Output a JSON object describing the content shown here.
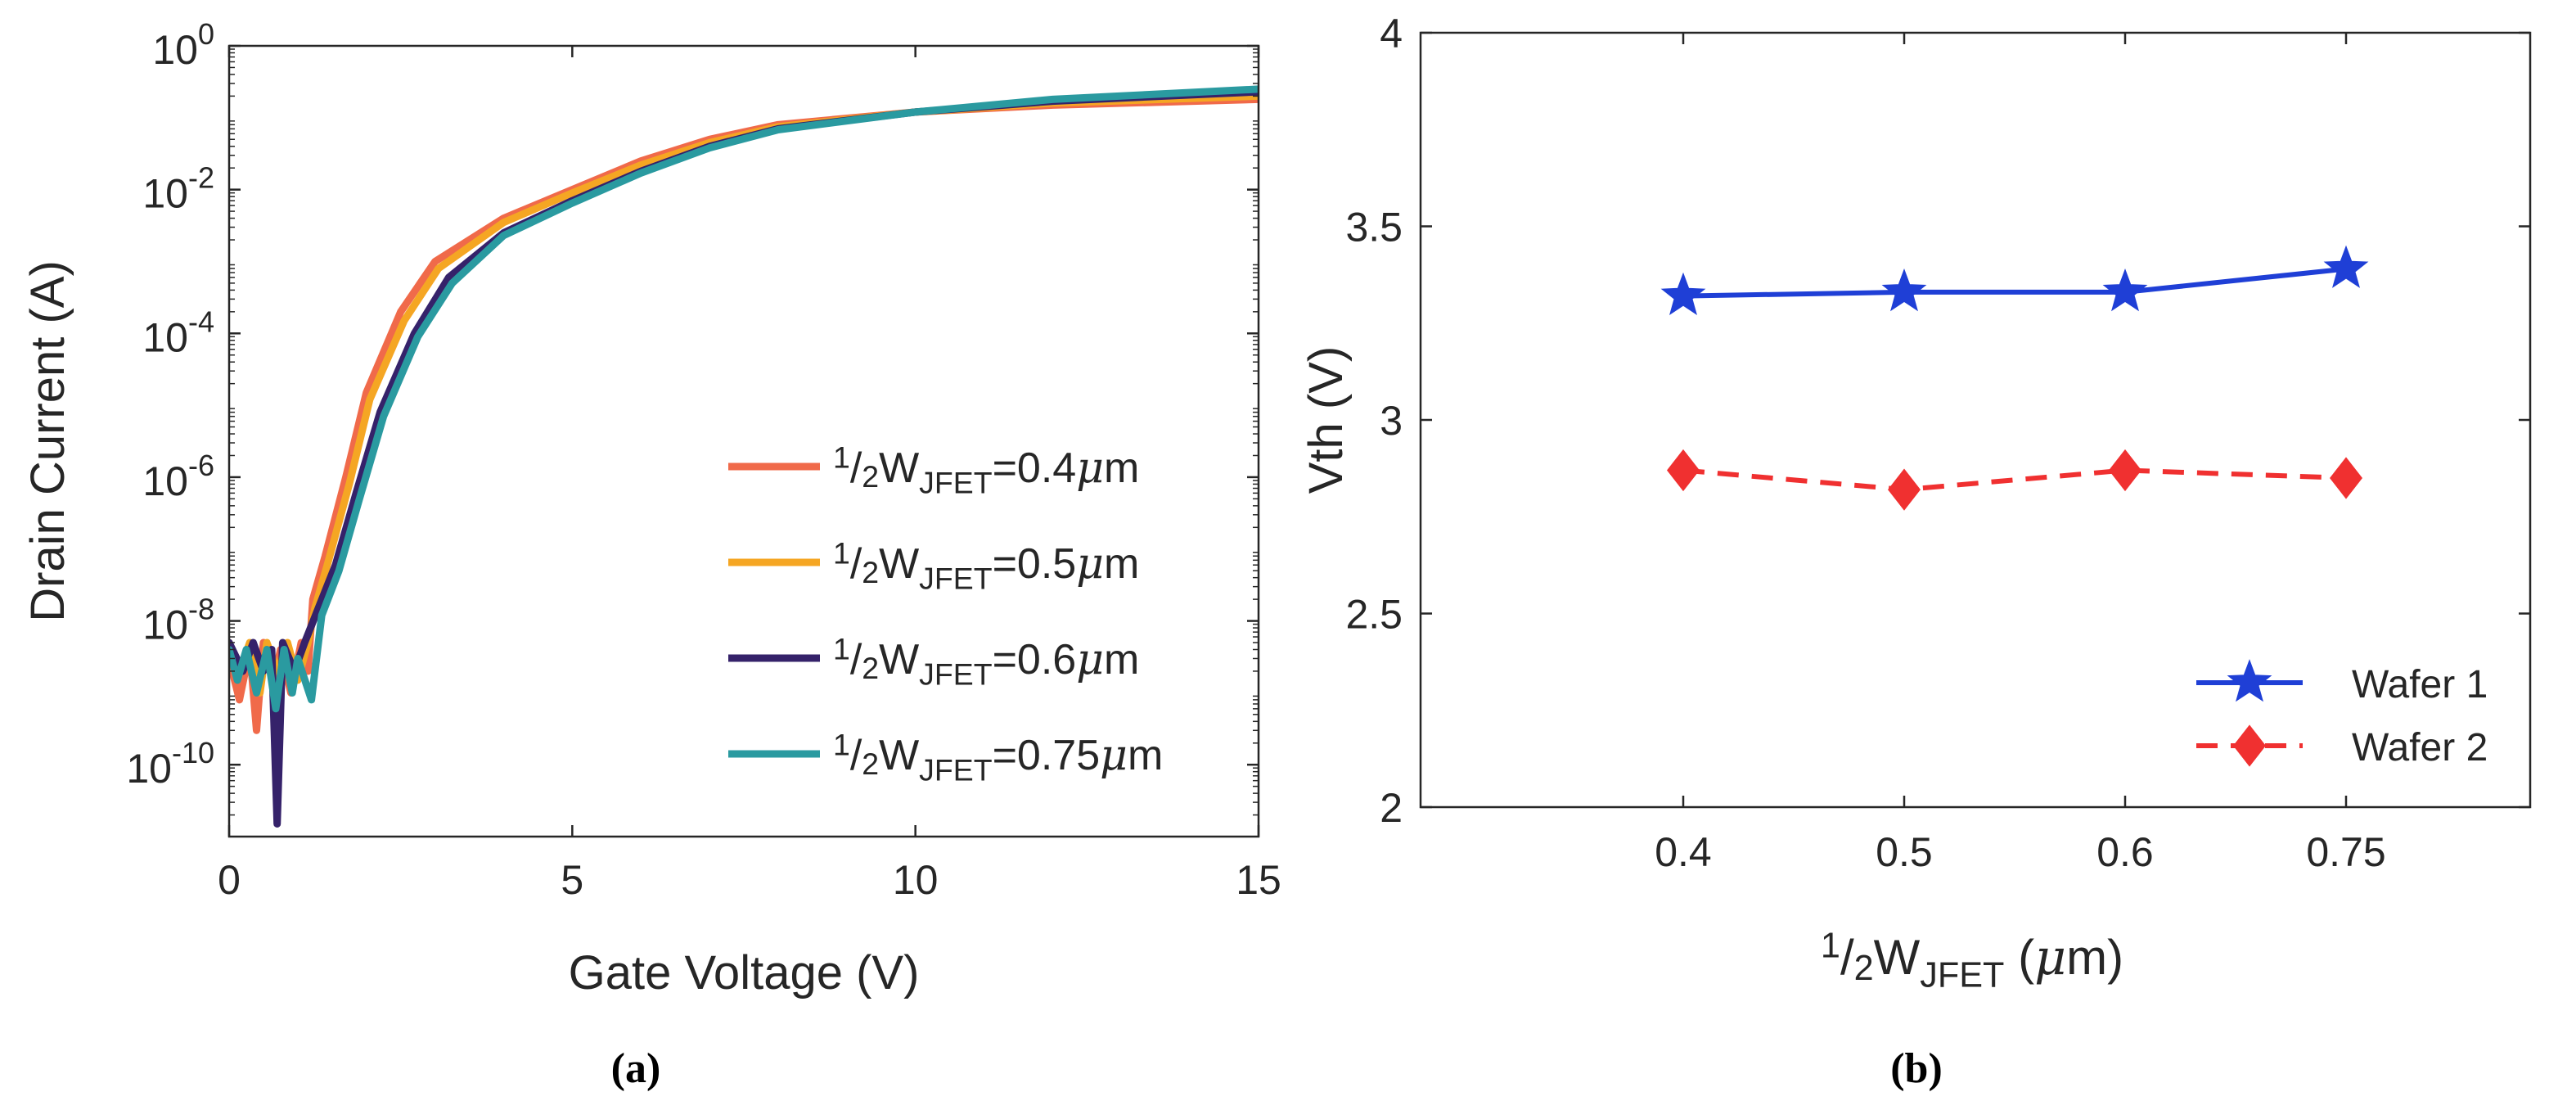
{
  "chart_data": [
    {
      "panel": "a",
      "type": "line",
      "caption": "(a)",
      "xlabel": "Gate Voltage (V)",
      "ylabel": "Drain Current (A)",
      "xlim": [
        0,
        15
      ],
      "ylim": [
        1e-11,
        1
      ],
      "yscale": "log",
      "xticks": [
        "0",
        "5",
        "10",
        "15"
      ],
      "yticks": [
        {
          "value": 1e-10,
          "base": "10",
          "exp": "-10"
        },
        {
          "value": 1e-08,
          "base": "10",
          "exp": "-8"
        },
        {
          "value": 1e-06,
          "base": "10",
          "exp": "-6"
        },
        {
          "value": 0.0001,
          "base": "10",
          "exp": "-4"
        },
        {
          "value": 0.01,
          "base": "10",
          "exp": "-2"
        },
        {
          "value": 1,
          "base": "10",
          "exp": "0"
        }
      ],
      "legend_position": "bottom-right",
      "series": [
        {
          "name": "1/2W_JFET=0.4µm",
          "label": {
            "num": "1",
            "den": "2",
            "main": "W",
            "sub": "JFET",
            "value": "=0.4",
            "mu": "μ",
            "unit": "m"
          },
          "color": "#f06a4a",
          "points": [
            [
              0,
              3e-09
            ],
            [
              0.15,
              8e-10
            ],
            [
              0.3,
              4e-09
            ],
            [
              0.4,
              3e-10
            ],
            [
              0.5,
              5e-09
            ],
            [
              0.65,
              1.5e-09
            ],
            [
              0.75,
              4e-09
            ],
            [
              0.9,
              1e-09
            ],
            [
              1.05,
              5e-09
            ],
            [
              1.15,
              2e-09
            ],
            [
              1.22,
              2e-08
            ],
            [
              1.4,
              8e-08
            ],
            [
              1.7,
              1e-06
            ],
            [
              2.0,
              1.5e-05
            ],
            [
              2.5,
              0.0002
            ],
            [
              3,
              0.001
            ],
            [
              4,
              0.004
            ],
            [
              5,
              0.01
            ],
            [
              6,
              0.025
            ],
            [
              7,
              0.05
            ],
            [
              8,
              0.08
            ],
            [
              10,
              0.12
            ],
            [
              12,
              0.15
            ],
            [
              15,
              0.18
            ]
          ]
        },
        {
          "name": "1/2W_JFET=0.5µm",
          "label": {
            "num": "1",
            "den": "2",
            "main": "W",
            "sub": "JFET",
            "value": "=0.5",
            "mu": "μ",
            "unit": "m"
          },
          "color": "#f5a623",
          "points": [
            [
              0,
              5e-09
            ],
            [
              0.15,
              2e-09
            ],
            [
              0.3,
              5e-09
            ],
            [
              0.45,
              1e-09
            ],
            [
              0.55,
              5e-09
            ],
            [
              0.7,
              2e-09
            ],
            [
              0.85,
              5e-09
            ],
            [
              1.0,
              1.5e-09
            ],
            [
              1.15,
              5e-09
            ],
            [
              1.25,
              1.5e-08
            ],
            [
              1.45,
              7e-08
            ],
            [
              1.75,
              8e-07
            ],
            [
              2.05,
              1.2e-05
            ],
            [
              2.55,
              0.00015
            ],
            [
              3.05,
              0.0008
            ],
            [
              4,
              0.0035
            ],
            [
              5,
              0.009
            ],
            [
              6,
              0.022
            ],
            [
              7,
              0.045
            ],
            [
              8,
              0.075
            ],
            [
              10,
              0.12
            ],
            [
              12,
              0.16
            ],
            [
              15,
              0.2
            ]
          ]
        },
        {
          "name": "1/2W_JFET=0.6µm",
          "label": {
            "num": "1",
            "den": "2",
            "main": "W",
            "sub": "JFET",
            "value": "=0.6",
            "mu": "μ",
            "unit": "m"
          },
          "color": "#35226a",
          "points": [
            [
              0,
              5e-09
            ],
            [
              0.2,
              2e-09
            ],
            [
              0.35,
              5e-09
            ],
            [
              0.5,
              2e-09
            ],
            [
              0.62,
              4e-09
            ],
            [
              0.7,
              1.5e-11
            ],
            [
              0.78,
              5e-09
            ],
            [
              0.95,
              2e-09
            ],
            [
              1.1,
              5e-09
            ],
            [
              1.3,
              1.5e-08
            ],
            [
              1.55,
              6e-08
            ],
            [
              1.85,
              6e-07
            ],
            [
              2.2,
              8e-06
            ],
            [
              2.7,
              0.0001
            ],
            [
              3.2,
              0.0006
            ],
            [
              4,
              0.0025
            ],
            [
              5,
              0.007
            ],
            [
              6,
              0.018
            ],
            [
              7,
              0.04
            ],
            [
              8,
              0.07
            ],
            [
              10,
              0.12
            ],
            [
              12,
              0.17
            ],
            [
              15,
              0.23
            ]
          ]
        },
        {
          "name": "1/2W_JFET=0.75µm",
          "label": {
            "num": "1",
            "den": "2",
            "main": "W",
            "sub": "JFET",
            "value": "=0.75",
            "mu": "μ",
            "unit": "m"
          },
          "color": "#2a9aa0",
          "points": [
            [
              0,
              4e-09
            ],
            [
              0.12,
              1.5e-09
            ],
            [
              0.25,
              4e-09
            ],
            [
              0.4,
              1e-09
            ],
            [
              0.55,
              4e-09
            ],
            [
              0.68,
              6e-10
            ],
            [
              0.8,
              4e-09
            ],
            [
              0.92,
              1e-09
            ],
            [
              1.0,
              3e-09
            ],
            [
              1.2,
              8e-10
            ],
            [
              1.35,
              1.2e-08
            ],
            [
              1.6,
              5e-08
            ],
            [
              1.9,
              5e-07
            ],
            [
              2.25,
              7e-06
            ],
            [
              2.75,
              9e-05
            ],
            [
              3.25,
              0.0005
            ],
            [
              4,
              0.0023
            ],
            [
              5,
              0.0065
            ],
            [
              6,
              0.017
            ],
            [
              7,
              0.038
            ],
            [
              8,
              0.068
            ],
            [
              10,
              0.12
            ],
            [
              12,
              0.18
            ],
            [
              15,
              0.25
            ]
          ]
        }
      ]
    },
    {
      "panel": "b",
      "type": "line",
      "caption": "(b)",
      "xlabel": {
        "num": "1",
        "den": "2",
        "main": "W",
        "sub": "JFET",
        "rest": " (",
        "mu": "μ",
        "unit": "m)"
      },
      "ylabel": "Vth (V)",
      "categories": [
        "0.4",
        "0.5",
        "0.6",
        "0.75"
      ],
      "ylim": [
        2,
        4
      ],
      "yticks": [
        "2",
        "2.5",
        "3",
        "3.5",
        "4"
      ],
      "legend_position": "bottom-right",
      "series": [
        {
          "name": "Wafer 1",
          "values": [
            3.32,
            3.33,
            3.33,
            3.39
          ],
          "color": "#1f3fd6",
          "marker": "star",
          "linestyle": "solid"
        },
        {
          "name": "Wafer 2",
          "values": [
            2.87,
            2.82,
            2.87,
            2.85
          ],
          "color": "#f03030",
          "marker": "diamond",
          "linestyle": "dashed"
        }
      ]
    }
  ]
}
